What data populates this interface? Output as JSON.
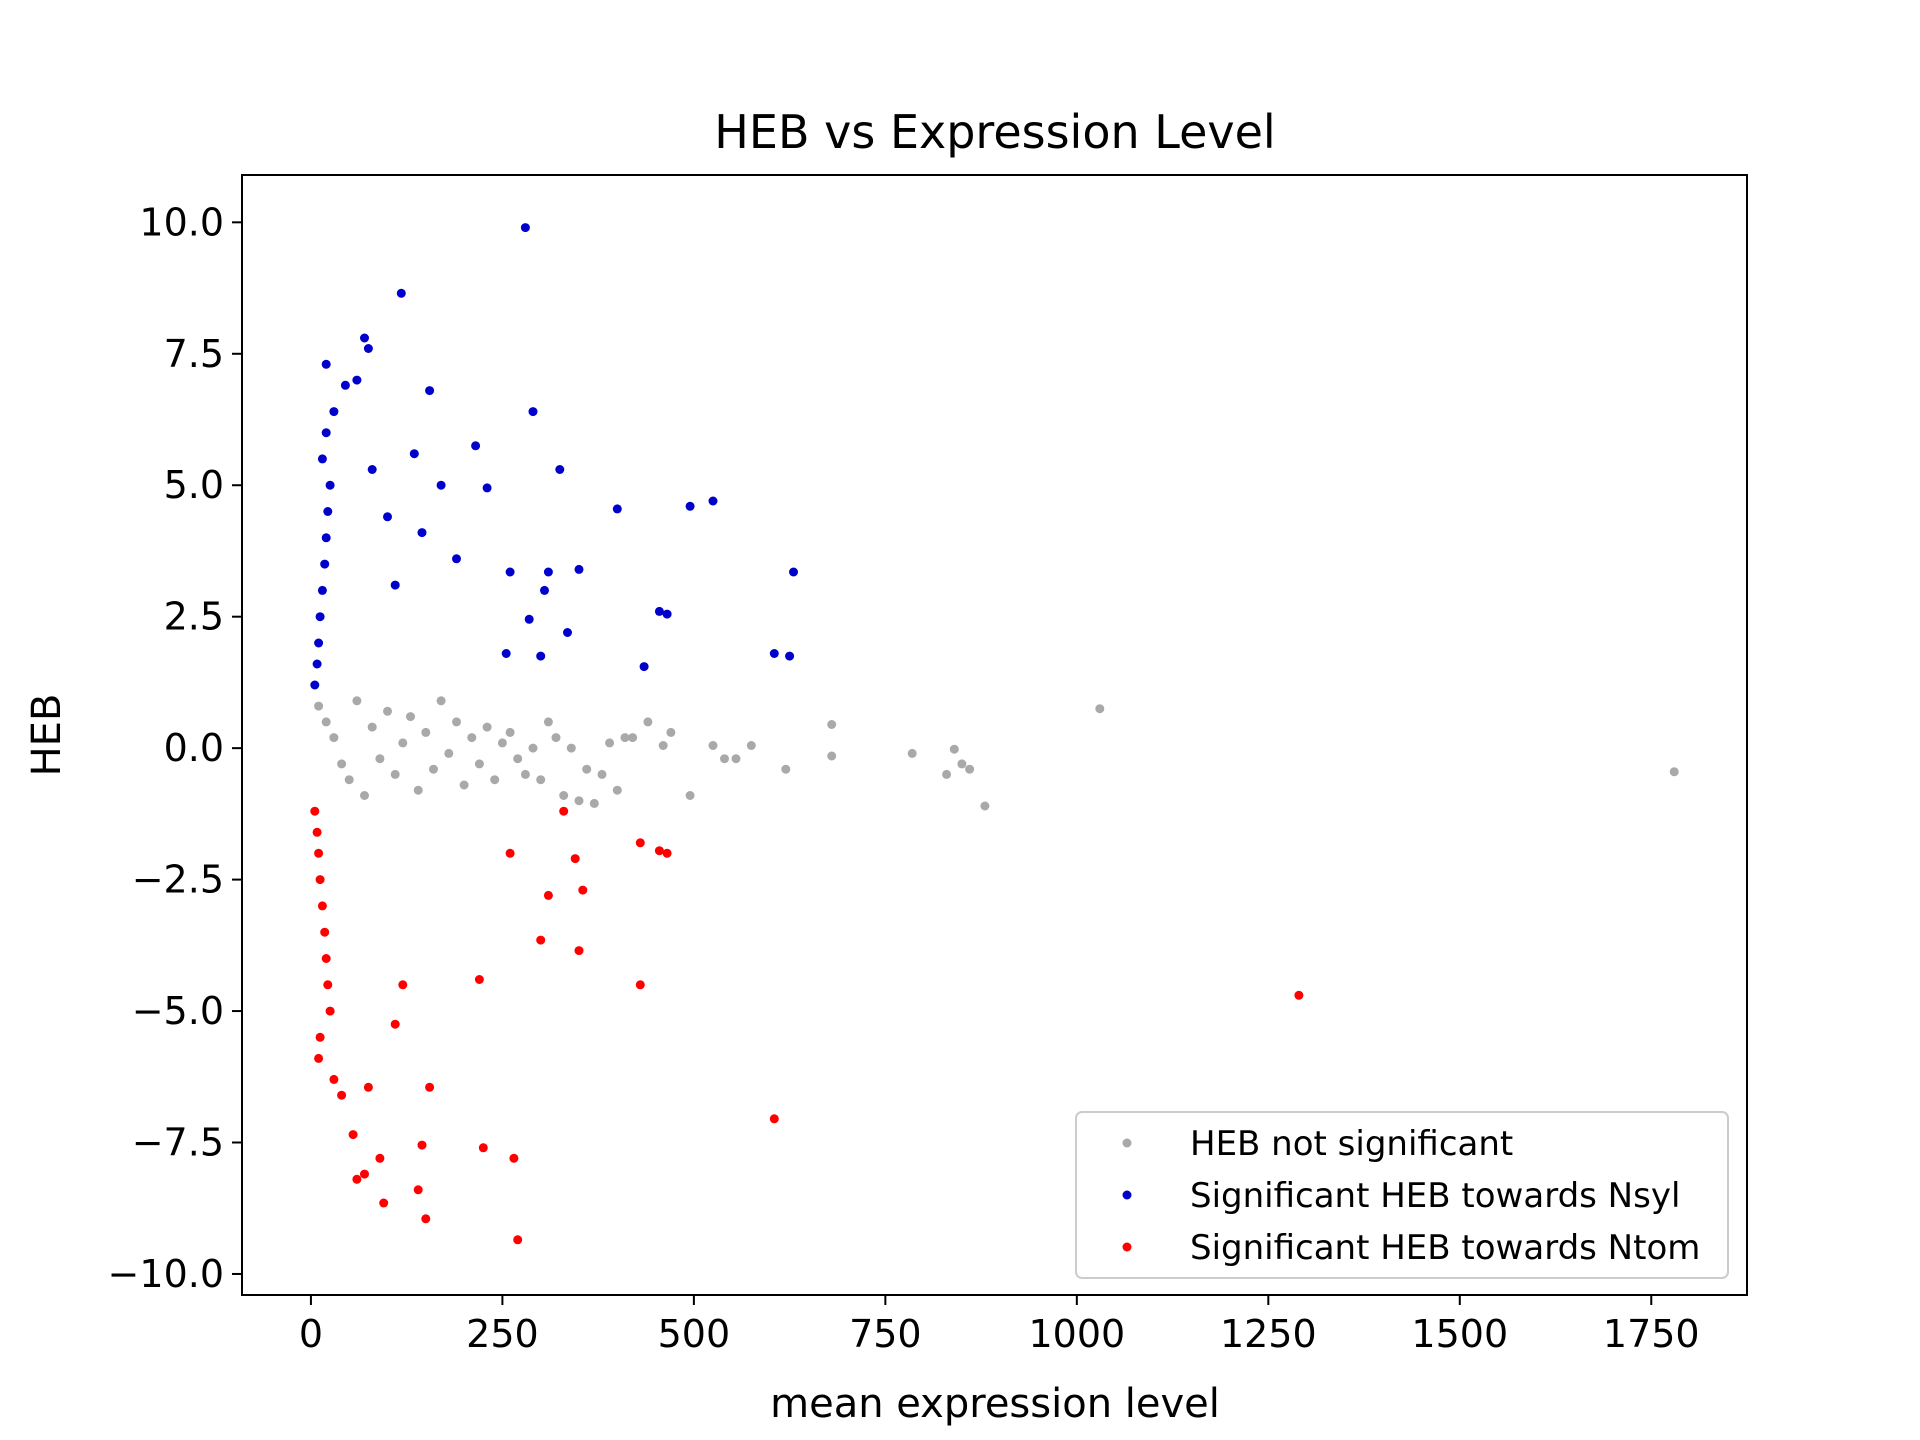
{
  "chart_data": {
    "type": "scatter",
    "title": "HEB vs Expression Level",
    "xlabel": "mean expression level",
    "ylabel": "HEB",
    "xlim": [
      -90,
      1875
    ],
    "ylim": [
      -10.4,
      10.9
    ],
    "xticks": [
      0,
      250,
      500,
      750,
      1000,
      1250,
      1500,
      1750
    ],
    "xtick_labels": [
      "0",
      "250",
      "500",
      "750",
      "1000",
      "1250",
      "1500",
      "1750"
    ],
    "yticks": [
      -10,
      -7.5,
      -5,
      -2.5,
      0,
      2.5,
      5,
      7.5,
      10
    ],
    "ytick_labels": [
      "−10.0",
      "−7.5",
      "−5.0",
      "−2.5",
      "0.0",
      "2.5",
      "5.0",
      "7.5",
      "10.0"
    ],
    "grid": false,
    "legend_position": "bottom-right",
    "series": [
      {
        "name": "HEB not significant",
        "color": "#a9a9a9",
        "points": [
          [
            10,
            0.8
          ],
          [
            20,
            0.5
          ],
          [
            30,
            0.2
          ],
          [
            40,
            -0.3
          ],
          [
            50,
            -0.6
          ],
          [
            60,
            0.9
          ],
          [
            70,
            -0.9
          ],
          [
            80,
            0.4
          ],
          [
            90,
            -0.2
          ],
          [
            100,
            0.7
          ],
          [
            110,
            -0.5
          ],
          [
            120,
            0.1
          ],
          [
            130,
            0.6
          ],
          [
            140,
            -0.8
          ],
          [
            150,
            0.3
          ],
          [
            160,
            -0.4
          ],
          [
            170,
            0.9
          ],
          [
            180,
            -0.1
          ],
          [
            190,
            0.5
          ],
          [
            200,
            -0.7
          ],
          [
            210,
            0.2
          ],
          [
            220,
            -0.3
          ],
          [
            230,
            0.4
          ],
          [
            240,
            -0.6
          ],
          [
            250,
            0.1
          ],
          [
            260,
            0.3
          ],
          [
            270,
            -0.2
          ],
          [
            280,
            -0.5
          ],
          [
            290,
            0.0
          ],
          [
            300,
            -0.6
          ],
          [
            310,
            0.5
          ],
          [
            320,
            0.2
          ],
          [
            330,
            -0.9
          ],
          [
            340,
            0.0
          ],
          [
            350,
            -1.0
          ],
          [
            360,
            -0.4
          ],
          [
            370,
            -1.05
          ],
          [
            380,
            -0.5
          ],
          [
            390,
            0.1
          ],
          [
            400,
            -0.8
          ],
          [
            410,
            0.2
          ],
          [
            420,
            0.2
          ],
          [
            440,
            0.5
          ],
          [
            460,
            0.05
          ],
          [
            470,
            0.3
          ],
          [
            495,
            -0.9
          ],
          [
            525,
            0.05
          ],
          [
            540,
            -0.2
          ],
          [
            555,
            -0.2
          ],
          [
            575,
            0.05
          ],
          [
            620,
            -0.4
          ],
          [
            680,
            0.45
          ],
          [
            680,
            -0.15
          ],
          [
            785,
            -0.1
          ],
          [
            830,
            -0.5
          ],
          [
            840,
            -0.02
          ],
          [
            850,
            -0.3
          ],
          [
            860,
            -0.4
          ],
          [
            880,
            -1.1
          ],
          [
            1030,
            0.75
          ],
          [
            1780,
            -0.45
          ]
        ]
      },
      {
        "name": "Significant HEB towards Nsyl",
        "color": "#0000cd",
        "points": [
          [
            5,
            1.2
          ],
          [
            8,
            1.6
          ],
          [
            10,
            2.0
          ],
          [
            12,
            2.5
          ],
          [
            15,
            3.0
          ],
          [
            18,
            3.5
          ],
          [
            20,
            4.0
          ],
          [
            22,
            4.5
          ],
          [
            25,
            5.0
          ],
          [
            15,
            5.5
          ],
          [
            20,
            6.0
          ],
          [
            20,
            7.3
          ],
          [
            30,
            6.4
          ],
          [
            45,
            6.9
          ],
          [
            60,
            7.0
          ],
          [
            70,
            7.8
          ],
          [
            75,
            7.6
          ],
          [
            80,
            5.3
          ],
          [
            100,
            4.4
          ],
          [
            110,
            3.1
          ],
          [
            118,
            8.65
          ],
          [
            135,
            5.6
          ],
          [
            145,
            4.1
          ],
          [
            155,
            6.8
          ],
          [
            170,
            5.0
          ],
          [
            190,
            3.6
          ],
          [
            215,
            5.75
          ],
          [
            230,
            4.95
          ],
          [
            255,
            1.8
          ],
          [
            260,
            3.35
          ],
          [
            280,
            9.9
          ],
          [
            285,
            2.45
          ],
          [
            290,
            6.4
          ],
          [
            300,
            1.75
          ],
          [
            305,
            3.0
          ],
          [
            310,
            3.35
          ],
          [
            325,
            5.3
          ],
          [
            335,
            2.2
          ],
          [
            350,
            3.4
          ],
          [
            400,
            4.55
          ],
          [
            435,
            1.55
          ],
          [
            455,
            2.6
          ],
          [
            465,
            2.55
          ],
          [
            495,
            4.6
          ],
          [
            525,
            4.7
          ],
          [
            605,
            1.8
          ],
          [
            625,
            1.75
          ],
          [
            630,
            3.35
          ]
        ]
      },
      {
        "name": "Significant HEB towards Ntom",
        "color": "#ff0000",
        "points": [
          [
            5,
            -1.2
          ],
          [
            8,
            -1.6
          ],
          [
            10,
            -2.0
          ],
          [
            12,
            -2.5
          ],
          [
            15,
            -3.0
          ],
          [
            18,
            -3.5
          ],
          [
            20,
            -4.0
          ],
          [
            22,
            -4.5
          ],
          [
            25,
            -5.0
          ],
          [
            12,
            -5.5
          ],
          [
            10,
            -5.9
          ],
          [
            30,
            -6.3
          ],
          [
            40,
            -6.6
          ],
          [
            55,
            -7.35
          ],
          [
            60,
            -8.2
          ],
          [
            70,
            -8.1
          ],
          [
            75,
            -6.45
          ],
          [
            90,
            -7.8
          ],
          [
            95,
            -8.65
          ],
          [
            110,
            -5.25
          ],
          [
            120,
            -4.5
          ],
          [
            140,
            -8.4
          ],
          [
            145,
            -7.55
          ],
          [
            150,
            -8.95
          ],
          [
            155,
            -6.45
          ],
          [
            220,
            -4.4
          ],
          [
            225,
            -7.6
          ],
          [
            260,
            -2.0
          ],
          [
            265,
            -7.8
          ],
          [
            270,
            -9.35
          ],
          [
            300,
            -3.65
          ],
          [
            310,
            -2.8
          ],
          [
            330,
            -1.2
          ],
          [
            345,
            -2.1
          ],
          [
            350,
            -3.85
          ],
          [
            355,
            -2.7
          ],
          [
            430,
            -1.8
          ],
          [
            430,
            -4.5
          ],
          [
            455,
            -1.95
          ],
          [
            465,
            -2.0
          ],
          [
            605,
            -7.05
          ],
          [
            1290,
            -4.7
          ]
        ]
      }
    ]
  }
}
